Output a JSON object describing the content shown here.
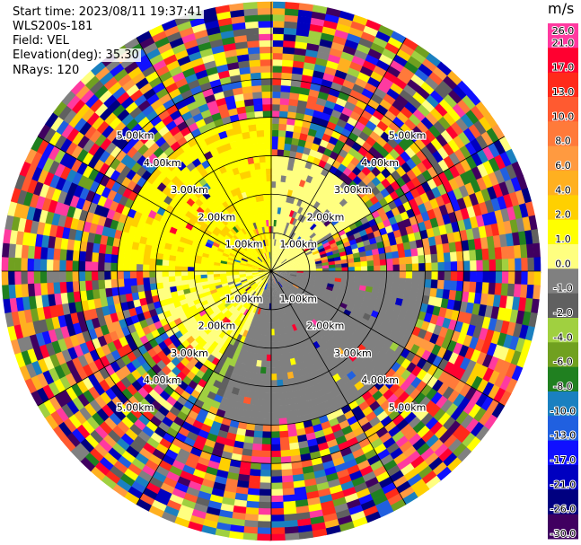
{
  "header": {
    "start_time": "Start time: 2023/08/11 19:37:41",
    "instrument": "WLS200s-181",
    "field": "Field: VEL",
    "elevation": "Elevation(deg): 35.30",
    "nrays": "NRays: 120"
  },
  "chart_data": {
    "type": "ppi",
    "field": "VEL",
    "elevation_deg": 35.3,
    "nrays": 120,
    "ring_labels_km": [
      "1.00km",
      "2.00km",
      "3.00km",
      "4.00km",
      "5.00km"
    ],
    "max_range_km": 7.0,
    "colorbar": {
      "unit": "m/s",
      "ticks": [
        "26.0",
        "21.0",
        "17.0",
        "13.0",
        "10.0",
        "8.0",
        "6.0",
        "4.0",
        "2.0",
        "1.0",
        "0.0",
        "-1.0",
        "-2.0",
        "-4.0",
        "-6.0",
        "-8.0",
        "-10.0",
        "-13.0",
        "-17.0",
        "-21.0",
        "-26.0",
        "-30.0"
      ],
      "colors": [
        "#ff3aa0",
        "#ff0030",
        "#ff2a1a",
        "#ff5a30",
        "#ff7a3a",
        "#ff9a40",
        "#ffb020",
        "#ffd000",
        "#ffff00",
        "#ffff80",
        "#808080",
        "#606060",
        "#a0d040",
        "#70a020",
        "#208020",
        "#1a80c0",
        "#2060e0",
        "#1010ff",
        "#0000c0",
        "#000080",
        "#400060"
      ]
    },
    "regions": [
      {
        "azimuth_deg": [
          270,
          360
        ],
        "range_km": [
          0,
          4
        ],
        "velocity_ms": 4.0
      },
      {
        "azimuth_deg": [
          0,
          60
        ],
        "range_km": [
          1,
          3
        ],
        "velocity_ms": 0.0
      },
      {
        "azimuth_deg": [
          90,
          200
        ],
        "range_km": [
          0,
          4
        ],
        "velocity_ms": -2.0
      },
      {
        "azimuth_deg": [
          150,
          210
        ],
        "range_km": [
          2,
          4
        ],
        "velocity_ms": -6.0
      },
      {
        "azimuth_deg": [
          200,
          270
        ],
        "range_km": [
          0,
          3
        ],
        "velocity_ms": 2.0
      }
    ]
  }
}
